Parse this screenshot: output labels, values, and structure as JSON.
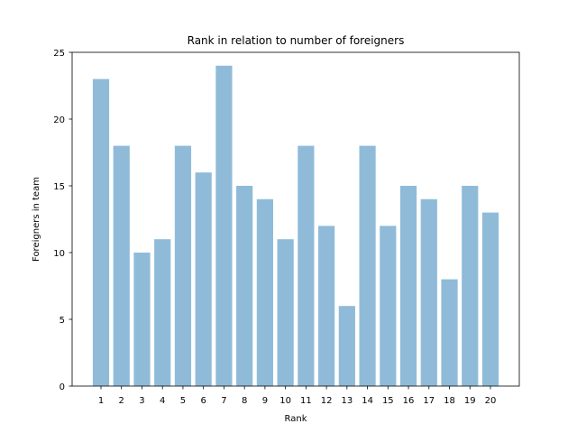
{
  "chart_data": {
    "type": "bar",
    "title": "Rank in relation to number of foreigners",
    "xlabel": "Rank",
    "ylabel": "Foreigners in team",
    "categories": [
      "1",
      "2",
      "3",
      "4",
      "5",
      "6",
      "7",
      "8",
      "9",
      "10",
      "11",
      "12",
      "13",
      "14",
      "15",
      "16",
      "17",
      "18",
      "19",
      "20"
    ],
    "values": [
      23,
      18,
      10,
      11,
      18,
      16,
      24,
      15,
      14,
      11,
      18,
      12,
      6,
      18,
      12,
      15,
      14,
      8,
      15,
      13
    ],
    "ylim": [
      0,
      25
    ],
    "yticks": [
      "0",
      "5",
      "10",
      "15",
      "20",
      "25"
    ],
    "grid": false,
    "bar_color": "#8fbbd9"
  }
}
